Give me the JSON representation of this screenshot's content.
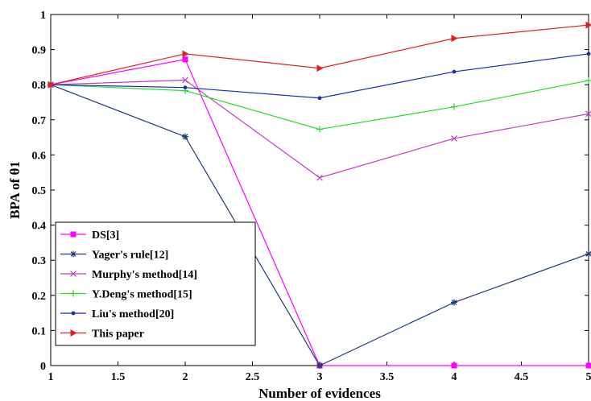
{
  "chart_data": {
    "type": "line",
    "xlabel": "Number of evidences",
    "ylabel": "BPA  of  θ1",
    "xlim": [
      1,
      5
    ],
    "ylim": [
      0,
      1
    ],
    "xticks": [
      1,
      1.5,
      2,
      2.5,
      3,
      3.5,
      4,
      4.5,
      5
    ],
    "xtick_labels": [
      "1",
      "1.5",
      "2",
      "2.5",
      "3",
      "3.5",
      "4",
      "4.5",
      "5"
    ],
    "yticks": [
      0,
      0.1,
      0.2,
      0.3,
      0.4,
      0.5,
      0.6,
      0.7,
      0.8,
      0.9,
      1
    ],
    "ytick_labels": [
      "0",
      "0.1",
      "0.2",
      "0.3",
      "0.4",
      "0.5",
      "0.6",
      "0.7",
      "0.8",
      "0.9",
      "1"
    ],
    "grid": false,
    "legend_position": "bottom-left",
    "series": [
      {
        "name": "DS[3]",
        "color": "#ff00ff",
        "marker": "square",
        "x": [
          1,
          2,
          3,
          4,
          5
        ],
        "values": [
          0.8,
          0.872,
          0.0,
          0.0,
          0.0
        ]
      },
      {
        "name": "Yager's rule[12]",
        "color": "#1f3a78",
        "marker": "star",
        "x": [
          1,
          2,
          3,
          4,
          5
        ],
        "values": [
          0.8,
          0.652,
          0.0,
          0.18,
          0.318
        ]
      },
      {
        "name": "Murphy's method[14]",
        "color": "#c040c0",
        "marker": "x",
        "x": [
          1,
          2,
          3,
          4,
          5
        ],
        "values": [
          0.8,
          0.813,
          0.535,
          0.647,
          0.717
        ]
      },
      {
        "name": "Y.Deng's method[15]",
        "color": "#22dd22",
        "marker": "plus",
        "x": [
          1,
          2,
          3,
          4,
          5
        ],
        "values": [
          0.8,
          0.783,
          0.673,
          0.737,
          0.812
        ]
      },
      {
        "name": "Liu's method[20]",
        "color": "#1a2fb0",
        "marker": "dot",
        "x": [
          1,
          2,
          3,
          4,
          5
        ],
        "values": [
          0.8,
          0.792,
          0.762,
          0.837,
          0.888
        ]
      },
      {
        "name": "This paper",
        "color": "#e02020",
        "marker": "triangle-right",
        "x": [
          1,
          2,
          3,
          4,
          5
        ],
        "values": [
          0.8,
          0.888,
          0.847,
          0.932,
          0.97
        ]
      }
    ]
  }
}
